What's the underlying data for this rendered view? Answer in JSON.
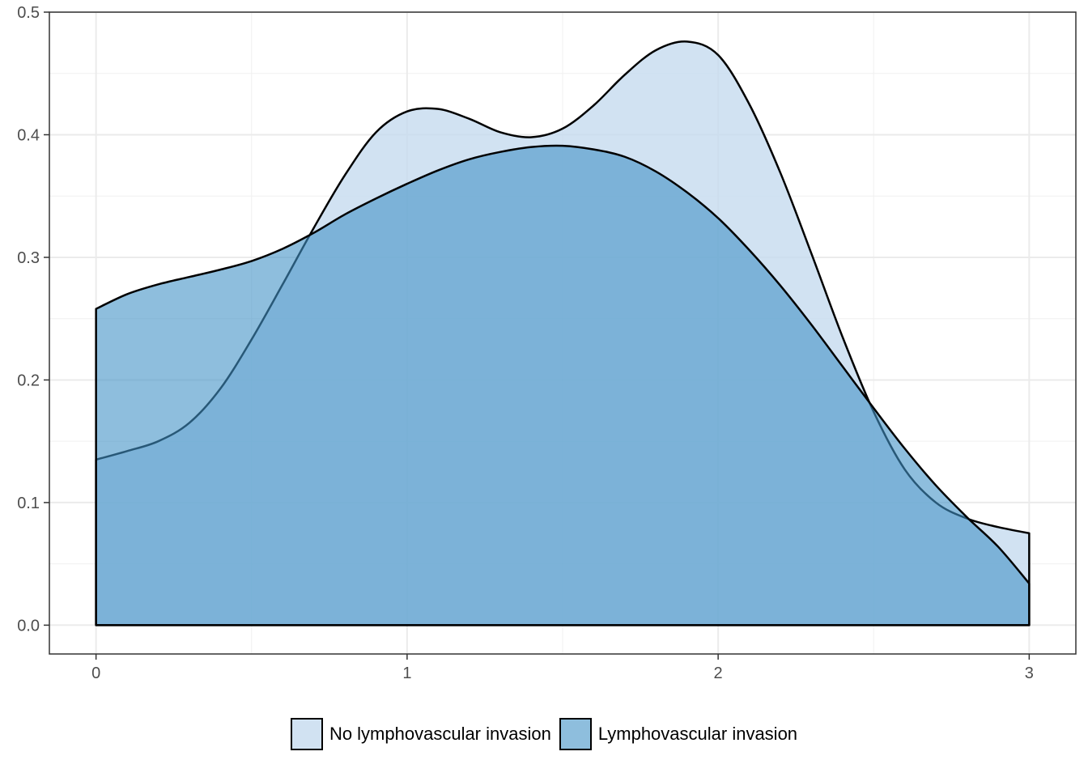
{
  "chart_data": {
    "type": "area",
    "title": "",
    "xlabel": "",
    "ylabel": "",
    "xlim": [
      -0.15,
      3.15
    ],
    "ylim": [
      -0.0235,
      0.5
    ],
    "xticks": [
      0,
      1,
      2,
      3
    ],
    "xtick_labels": [
      "0",
      "1",
      "2",
      "3"
    ],
    "yticks": [
      0.0,
      0.1,
      0.2,
      0.3,
      0.4,
      0.5
    ],
    "ytick_labels": [
      "0.0",
      "0.1",
      "0.2",
      "0.3",
      "0.4",
      "0.5"
    ],
    "grid": true,
    "legend_position": "bottom",
    "x": [
      0,
      0.1,
      0.2,
      0.3,
      0.4,
      0.5,
      0.6,
      0.7,
      0.8,
      0.9,
      1.0,
      1.1,
      1.2,
      1.3,
      1.4,
      1.5,
      1.6,
      1.7,
      1.8,
      1.9,
      2.0,
      2.1,
      2.2,
      2.3,
      2.4,
      2.5,
      2.6,
      2.7,
      2.8,
      2.9,
      3.0
    ],
    "series": [
      {
        "name": "No lymphovascular invasion",
        "color": "#c6dbef",
        "opacity": 0.8,
        "values": [
          0.135,
          0.142,
          0.15,
          0.165,
          0.193,
          0.233,
          0.278,
          0.324,
          0.367,
          0.402,
          0.419,
          0.421,
          0.413,
          0.402,
          0.398,
          0.405,
          0.424,
          0.449,
          0.469,
          0.476,
          0.465,
          0.425,
          0.369,
          0.303,
          0.235,
          0.174,
          0.127,
          0.1,
          0.087,
          0.08,
          0.075
        ]
      },
      {
        "name": "Lymphovascular invasion",
        "color": "#4292c6",
        "opacity": 0.6,
        "values": [
          0.258,
          0.27,
          0.278,
          0.284,
          0.29,
          0.297,
          0.307,
          0.32,
          0.335,
          0.348,
          0.36,
          0.371,
          0.38,
          0.386,
          0.39,
          0.391,
          0.388,
          0.382,
          0.37,
          0.353,
          0.332,
          0.306,
          0.277,
          0.245,
          0.211,
          0.177,
          0.144,
          0.114,
          0.088,
          0.064,
          0.034
        ]
      }
    ]
  },
  "legend": {
    "items": [
      {
        "label": "No lymphovascular invasion",
        "color": "#c6dbef",
        "opacity": 0.8
      },
      {
        "label": "Lymphovascular invasion",
        "color": "#4292c6",
        "opacity": 0.6
      }
    ]
  }
}
